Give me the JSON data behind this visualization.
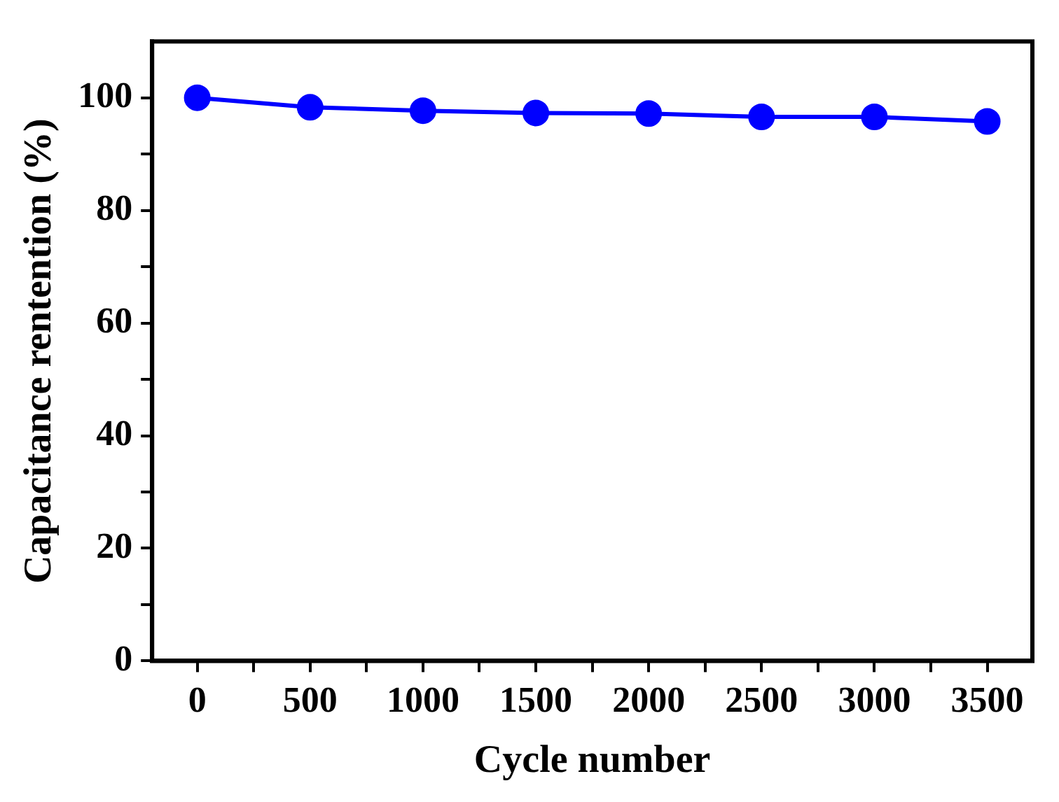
{
  "chart_data": {
    "type": "line",
    "xlabel": "Cycle number",
    "ylabel": "Capacitance rentention (%)",
    "x": [
      0,
      500,
      1000,
      1500,
      2000,
      2500,
      3000,
      3500
    ],
    "series": [
      {
        "color": "#0000ff",
        "values": [
          100,
          98.3,
          97.7,
          97.3,
          97.2,
          96.6,
          96.6,
          95.8
        ]
      }
    ],
    "xlim": [
      -200,
      3700
    ],
    "xticks": [
      0,
      {
        "value": 250,
        "label": null
      },
      500,
      {
        "value": 750,
        "label": null
      },
      1000,
      {
        "value": 1250,
        "label": null
      },
      1500,
      {
        "value": 1750,
        "label": null
      },
      2000,
      {
        "value": 2250,
        "label": null
      },
      2500,
      {
        "value": 2750,
        "label": null
      },
      3000,
      {
        "value": 3250,
        "label": null
      },
      3500
    ],
    "ylim": [
      0,
      110
    ],
    "yticks": [
      0,
      {
        "value": 10,
        "label": null
      },
      20,
      {
        "value": 30,
        "label": null
      },
      40,
      {
        "value": 50,
        "label": null
      },
      60,
      {
        "value": 70,
        "label": null
      },
      80,
      {
        "value": 90,
        "label": null
      },
      100
    ],
    "grid": false,
    "legend": false,
    "marker": "circle",
    "line_style": "solid"
  }
}
